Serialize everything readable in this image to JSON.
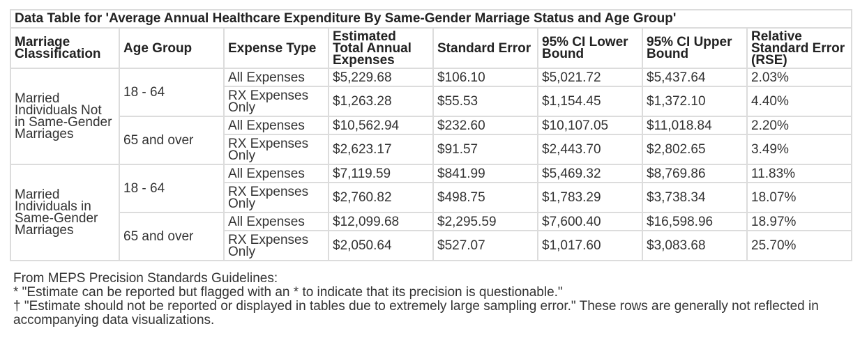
{
  "title": "Data Table for 'Average Annual Healthcare Expenditure By Same-Gender Marriage Status and Age Group'",
  "columns": [
    "Marriage Classification",
    "Age Group",
    "Expense Type",
    "Estimated Total Annual Expenses",
    "Standard Error",
    "95% CI Lower Bound",
    "95% CI Upper Bound",
    "Relative Standard Error (RSE)"
  ],
  "groups": [
    {
      "classification": "Married Individuals Not in Same-Gender Marriages",
      "ages": [
        {
          "age": "18 - 64",
          "rows": [
            {
              "type": "All Expenses",
              "total": "$5,229.68",
              "se": "$106.10",
              "lower": "$5,021.72",
              "upper": "$5,437.64",
              "rse": "2.03%"
            },
            {
              "type": "RX Expenses Only",
              "total": "$1,263.28",
              "se": "$55.53",
              "lower": "$1,154.45",
              "upper": "$1,372.10",
              "rse": "4.40%"
            }
          ]
        },
        {
          "age": "65 and over",
          "rows": [
            {
              "type": "All Expenses",
              "total": "$10,562.94",
              "se": "$232.60",
              "lower": "$10,107.05",
              "upper": "$11,018.84",
              "rse": "2.20%"
            },
            {
              "type": "RX Expenses Only",
              "total": "$2,623.17",
              "se": "$91.57",
              "lower": "$2,443.70",
              "upper": "$2,802.65",
              "rse": "3.49%"
            }
          ]
        }
      ]
    },
    {
      "classification": "Married Individuals in Same-Gender Marriages",
      "ages": [
        {
          "age": "18 - 64",
          "rows": [
            {
              "type": "All Expenses",
              "total": "$7,119.59",
              "se": "$841.99",
              "lower": "$5,469.32",
              "upper": "$8,769.86",
              "rse": "11.83%"
            },
            {
              "type": "RX Expenses Only",
              "total": "$2,760.82",
              "se": "$498.75",
              "lower": "$1,783.29",
              "upper": "$3,738.34",
              "rse": "18.07%"
            }
          ]
        },
        {
          "age": "65 and over",
          "rows": [
            {
              "type": "All Expenses",
              "total": "$12,099.68",
              "se": "$2,295.59",
              "lower": "$7,600.40",
              "upper": "$16,598.96",
              "rse": "18.97%"
            },
            {
              "type": "RX Expenses Only",
              "total": "$2,050.64",
              "se": "$527.07",
              "lower": "$1,017.60",
              "upper": "$3,083.68",
              "rse": "25.70%"
            }
          ]
        }
      ]
    }
  ],
  "notes": {
    "heading": "From MEPS Precision Standards Guidelines:",
    "asterisk": "* \"Estimate can be reported but flagged with an * to indicate that its precision is questionable.\"",
    "dagger": "† \"Estimate should not be reported or displayed in tables due to extremely large sampling error.\" These rows are generally not reflected in accompanying data visualizations."
  }
}
